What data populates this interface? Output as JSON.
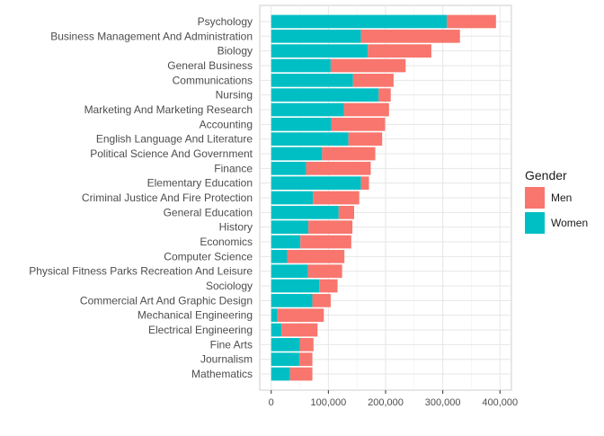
{
  "chart_data": {
    "type": "bar",
    "orientation": "horizontal",
    "stacked": true,
    "title": "",
    "xlabel": "",
    "ylabel": "",
    "xlim": [
      0,
      400000
    ],
    "x_ticks": [
      0,
      100000,
      200000,
      300000,
      400000
    ],
    "x_tick_labels": [
      "0",
      "100,000",
      "200,000",
      "300,000",
      "400,000"
    ],
    "grid": true,
    "legend_position": "right",
    "legend": {
      "title": "Gender",
      "entries": [
        {
          "key": "men",
          "label": "Men",
          "color": "#F8766D"
        },
        {
          "key": "women",
          "label": "Women",
          "color": "#00BFC4"
        }
      ]
    },
    "categories": [
      "Psychology",
      "Business Management And Administration",
      "Biology",
      "General Business",
      "Communications",
      "Nursing",
      "Marketing And Marketing Research",
      "Accounting",
      "English Language And Literature",
      "Political Science And Government",
      "Finance",
      "Elementary Education",
      "Criminal Justice And Fire Protection",
      "General Education",
      "History",
      "Economics",
      "Computer Science",
      "Physical Fitness Parks Recreation And Leisure",
      "Sociology",
      "Commercial Art And Graphic Design",
      "Mechanical Engineering",
      "Electrical Engineering",
      "Fine Arts",
      "Journalism",
      "Mathematics"
    ],
    "series": [
      {
        "name": "Women",
        "key": "women",
        "color": "#00BFC4",
        "values": [
          307000,
          157000,
          169000,
          104000,
          143000,
          188000,
          127000,
          105000,
          135000,
          89000,
          61000,
          157000,
          73000,
          118000,
          65000,
          51000,
          28000,
          64000,
          84000,
          72000,
          11000,
          18000,
          50000,
          49000,
          33000
        ]
      },
      {
        "name": "Men",
        "key": "men",
        "color": "#F8766D",
        "values": [
          86000,
          173000,
          111000,
          131000,
          71000,
          21000,
          79000,
          94000,
          59000,
          93000,
          113000,
          14000,
          81000,
          27000,
          77000,
          89000,
          100000,
          60000,
          32000,
          32000,
          81000,
          63000,
          24000,
          23000,
          39000
        ]
      }
    ]
  }
}
